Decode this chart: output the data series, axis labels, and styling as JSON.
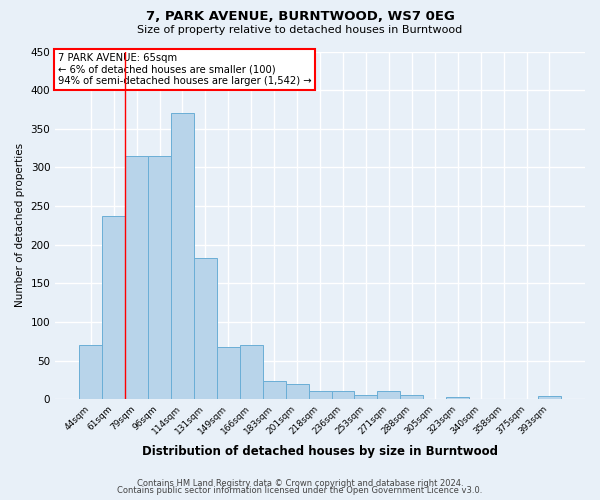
{
  "title": "7, PARK AVENUE, BURNTWOOD, WS7 0EG",
  "subtitle": "Size of property relative to detached houses in Burntwood",
  "xlabel": "Distribution of detached houses by size in Burntwood",
  "ylabel": "Number of detached properties",
  "footer_line1": "Contains HM Land Registry data © Crown copyright and database right 2024.",
  "footer_line2": "Contains public sector information licensed under the Open Government Licence v3.0.",
  "annotation_title": "7 PARK AVENUE: 65sqm",
  "annotation_line1": "← 6% of detached houses are smaller (100)",
  "annotation_line2": "94% of semi-detached houses are larger (1,542) →",
  "bar_labels": [
    "44sqm",
    "61sqm",
    "79sqm",
    "96sqm",
    "114sqm",
    "131sqm",
    "149sqm",
    "166sqm",
    "183sqm",
    "201sqm",
    "218sqm",
    "236sqm",
    "253sqm",
    "271sqm",
    "288sqm",
    "305sqm",
    "323sqm",
    "340sqm",
    "358sqm",
    "375sqm",
    "393sqm"
  ],
  "bar_values": [
    70,
    237,
    315,
    315,
    370,
    183,
    68,
    70,
    23,
    20,
    11,
    10,
    6,
    11,
    5,
    0,
    3,
    0,
    0,
    0,
    4
  ],
  "bar_color": "#b8d4ea",
  "bar_edge_color": "#6aaed6",
  "red_line_x": 1.5,
  "bg_color": "#e8f0f8",
  "plot_bg_color": "#e8f0f8",
  "grid_color": "#ffffff",
  "ylim": [
    0,
    450
  ],
  "yticks": [
    0,
    50,
    100,
    150,
    200,
    250,
    300,
    350,
    400,
    450
  ]
}
